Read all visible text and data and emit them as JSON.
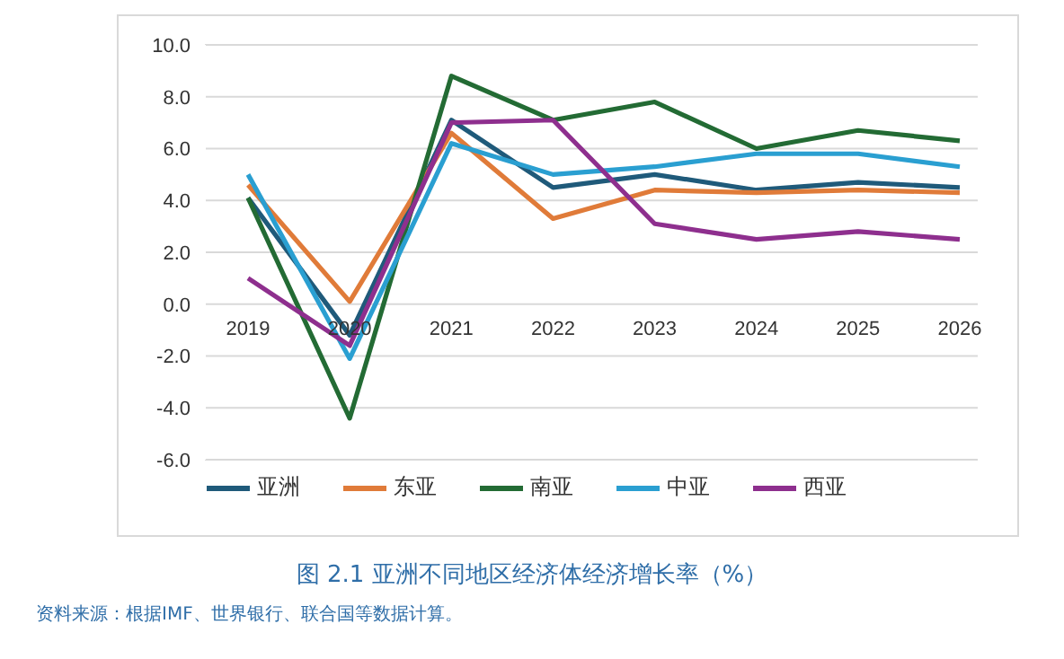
{
  "chart_data": {
    "type": "line",
    "title": "图 2.1  亚洲不同地区经济体经济增长率（%）",
    "annotations": [
      "资料来源：根据IMF、世界银行、联合国等数据计算。"
    ],
    "categories": [
      "2019",
      "2020",
      "2021",
      "2022",
      "2023",
      "2024",
      "2025",
      "2026"
    ],
    "series": [
      {
        "name": "亚洲",
        "color": "#1f5a7a",
        "values": [
          4.1,
          -1.2,
          7.1,
          4.5,
          5.0,
          4.4,
          4.7,
          4.5
        ]
      },
      {
        "name": "东亚",
        "color": "#e07b39",
        "values": [
          4.6,
          0.1,
          6.6,
          3.3,
          4.4,
          4.3,
          4.4,
          4.3
        ]
      },
      {
        "name": "南亚",
        "color": "#236b34",
        "values": [
          4.1,
          -4.4,
          8.8,
          7.1,
          7.8,
          6.0,
          6.7,
          6.3
        ]
      },
      {
        "name": "中亚",
        "color": "#2a9fd1",
        "values": [
          5.0,
          -2.1,
          6.2,
          5.0,
          5.3,
          5.8,
          5.8,
          5.3
        ]
      },
      {
        "name": "西亚",
        "color": "#8e2f8e",
        "values": [
          1.0,
          -1.6,
          7.0,
          7.1,
          3.1,
          2.5,
          2.8,
          2.5
        ]
      }
    ],
    "ylim": [
      -6,
      10
    ],
    "yticks": [
      {
        "value": -6,
        "label": "-6.0"
      },
      {
        "value": -4,
        "label": "-4.0"
      },
      {
        "value": -2,
        "label": "-2.0"
      },
      {
        "value": 0,
        "label": "0.0"
      },
      {
        "value": 2,
        "label": "2.0"
      },
      {
        "value": 4,
        "label": "4.0"
      },
      {
        "value": 6,
        "label": "6.0"
      },
      {
        "value": 8,
        "label": "8.0"
      },
      {
        "value": 10,
        "label": "10.0"
      }
    ],
    "grid": "y",
    "legend": "bottom",
    "marker": "none",
    "line_style": "solid"
  }
}
